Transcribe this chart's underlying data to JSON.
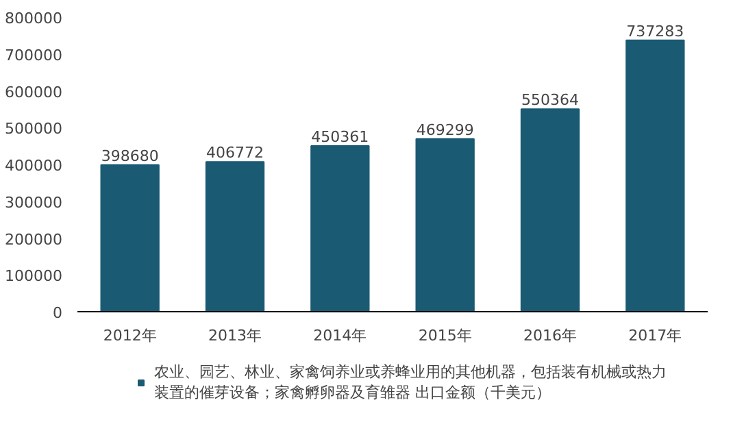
{
  "chart_data": {
    "type": "bar",
    "categories": [
      "2012年",
      "2013年",
      "2014年",
      "2015年",
      "2016年",
      "2017年"
    ],
    "series": [
      {
        "name": "农业、园艺、林业、家禽饲养业或养蜂业用的其他机器，包括装有机械或热力装置的催芽设备；家禽孵卵器及育雏器 出口金额（千美元）",
        "color": "#1a5a73",
        "values": [
          398680,
          406772,
          450361,
          469299,
          550364,
          737283
        ]
      }
    ],
    "ylim": [
      0,
      800000
    ],
    "yticks": [
      0,
      100000,
      200000,
      300000,
      400000,
      500000,
      600000,
      700000,
      800000
    ],
    "data_labels": true,
    "grid": false,
    "legend": "bottom"
  }
}
